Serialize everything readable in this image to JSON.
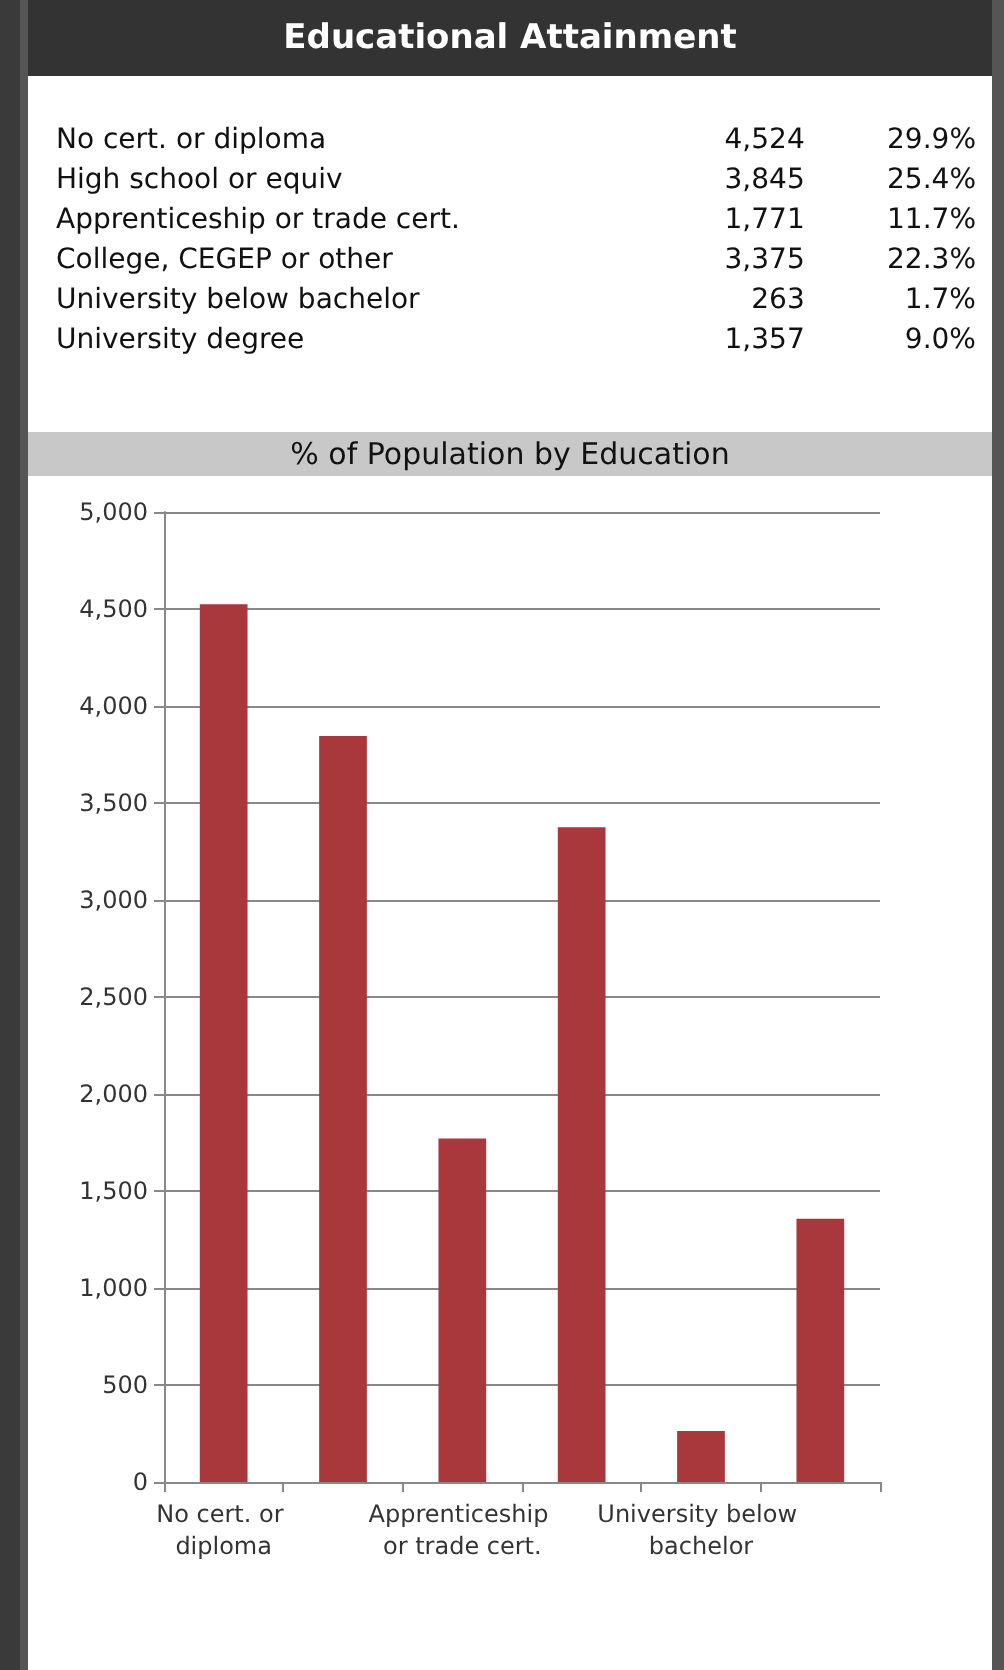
{
  "chart_data": [
    {
      "type": "other",
      "title": "Educational Attainment",
      "categories": [
        "No cert. or diploma",
        "High school or equiv",
        "Apprenticeship or trade cert.",
        "College, CEGEP or other",
        "University below bachelor",
        "University degree"
      ],
      "series": [
        {
          "values": [
            4524,
            3845,
            1771,
            3375,
            263,
            1357
          ],
          "value_labels": [
            "4,524",
            "3,845",
            "1,771",
            "3,375",
            "263",
            "1,357"
          ]
        },
        {
          "values": [
            29.9,
            25.4,
            11.7,
            22.3,
            1.7,
            9.0
          ],
          "value_labels": [
            "29.9%",
            "25.4%",
            "11.7%",
            "22.3%",
            "1.7%",
            "9.0%"
          ]
        }
      ]
    },
    {
      "type": "bar",
      "title": "% of Population by Education",
      "categories": [
        "No cert. or diploma",
        null,
        "Apprenticeship or trade cert.",
        null,
        "University below bachelor",
        null
      ],
      "values": [
        4524,
        3845,
        1771,
        3375,
        263,
        1357
      ],
      "color": "#a8383b",
      "ylim": [
        0,
        5000
      ],
      "yticks": [
        {
          "value": 0,
          "label": "0"
        },
        {
          "value": 500,
          "label": "500"
        },
        {
          "value": 1000,
          "label": "1,000"
        },
        {
          "value": 1500,
          "label": "1,500"
        },
        {
          "value": 2000,
          "label": "2,000"
        },
        {
          "value": 2500,
          "label": "2,500"
        },
        {
          "value": 3000,
          "label": "3,000"
        },
        {
          "value": 3500,
          "label": "3,500"
        },
        {
          "value": 4000,
          "label": "4,000"
        },
        {
          "value": 4500,
          "label": "4,500"
        },
        {
          "value": 5000,
          "label": "5,000"
        }
      ],
      "grid": "y"
    }
  ]
}
